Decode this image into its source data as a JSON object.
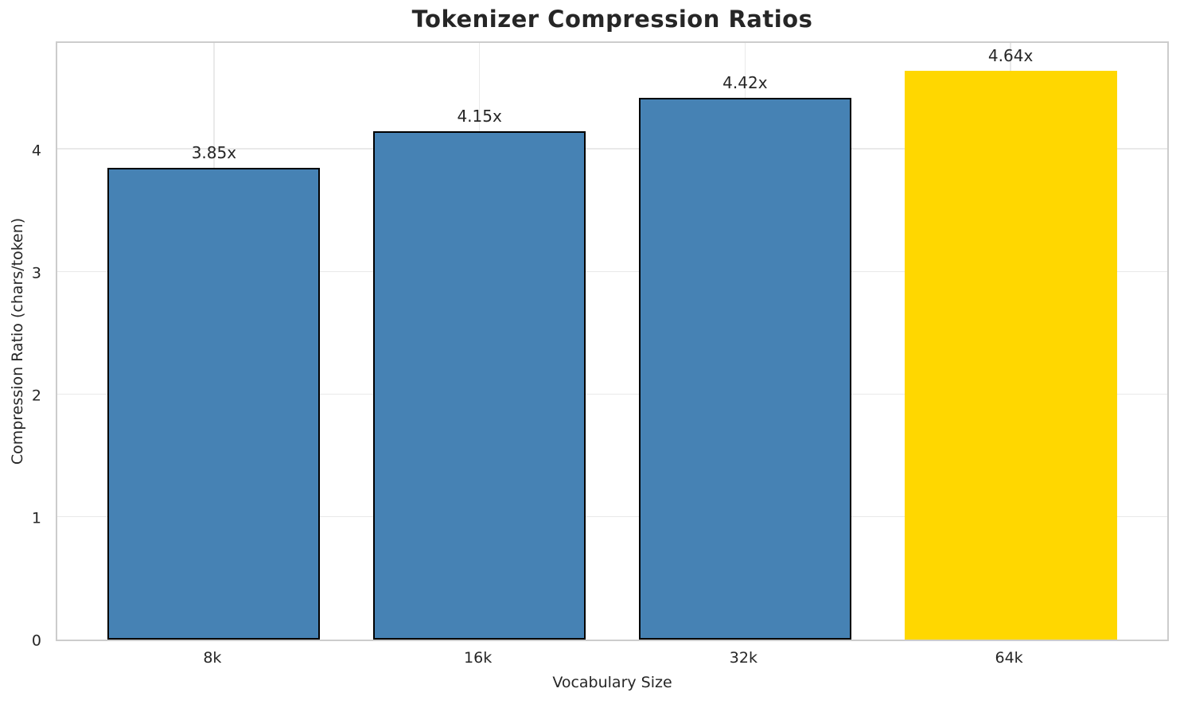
{
  "chart_data": {
    "type": "bar",
    "title": "Tokenizer Compression Ratios",
    "xlabel": "Vocabulary Size",
    "ylabel": "Compression Ratio (chars/token)",
    "categories": [
      "8k",
      "16k",
      "32k",
      "64k"
    ],
    "values": [
      3.85,
      4.15,
      4.42,
      4.64
    ],
    "value_labels": [
      "3.85x",
      "4.15x",
      "4.42x",
      "4.64x"
    ],
    "bar_colors": [
      "#4682B4",
      "#4682B4",
      "#4682B4",
      "#FFD700"
    ],
    "bar_has_edge": [
      true,
      true,
      true,
      false
    ],
    "yticks": [
      "0",
      "1",
      "2",
      "3",
      "4"
    ],
    "ytick_values": [
      0,
      1,
      2,
      3,
      4
    ],
    "ylim": [
      0,
      4.87
    ],
    "bar_width_fraction": 0.8,
    "grid": true,
    "legend_position": "none",
    "colors": {
      "default_bar": "#4682B4",
      "highlight_bar": "#FFD700",
      "bar_edge": "#000000",
      "grid": "#e9e9e9",
      "spine": "#cccccc",
      "text": "#262626"
    }
  }
}
